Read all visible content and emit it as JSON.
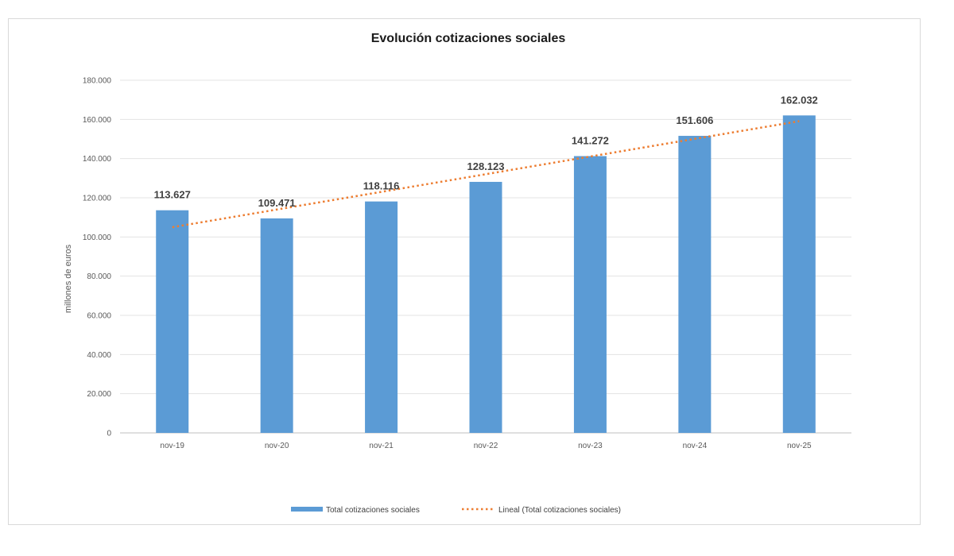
{
  "chart_data": {
    "type": "bar",
    "title": "Evolución cotizaciones sociales",
    "ylabel": "millones de euros",
    "xlabel": "",
    "categories": [
      "nov-19",
      "nov-20",
      "nov-21",
      "nov-22",
      "nov-23",
      "nov-24",
      "nov-25"
    ],
    "series": [
      {
        "name": "Total cotizaciones sociales",
        "values": [
          113627,
          109471,
          118116,
          128123,
          141272,
          151606,
          162032
        ],
        "labels": [
          "113.627",
          "109.471",
          "118.116",
          "128.123",
          "141.272",
          "151.606",
          "162.032"
        ],
        "color": "#5b9bd5"
      }
    ],
    "trendline": {
      "name": "Lineal (Total cotizaciones sociales)",
      "type": "linear",
      "color": "#ed7d31",
      "style": "dotted"
    },
    "ylim": [
      0,
      180000
    ],
    "yticks": [
      0,
      20000,
      40000,
      60000,
      80000,
      100000,
      120000,
      140000,
      160000,
      180000
    ],
    "ytick_labels": [
      "0",
      "20.000",
      "40.000",
      "60.000",
      "80.000",
      "100.000",
      "120.000",
      "140.000",
      "160.000",
      "180.000"
    ],
    "grid": true,
    "legend_position": "bottom"
  }
}
